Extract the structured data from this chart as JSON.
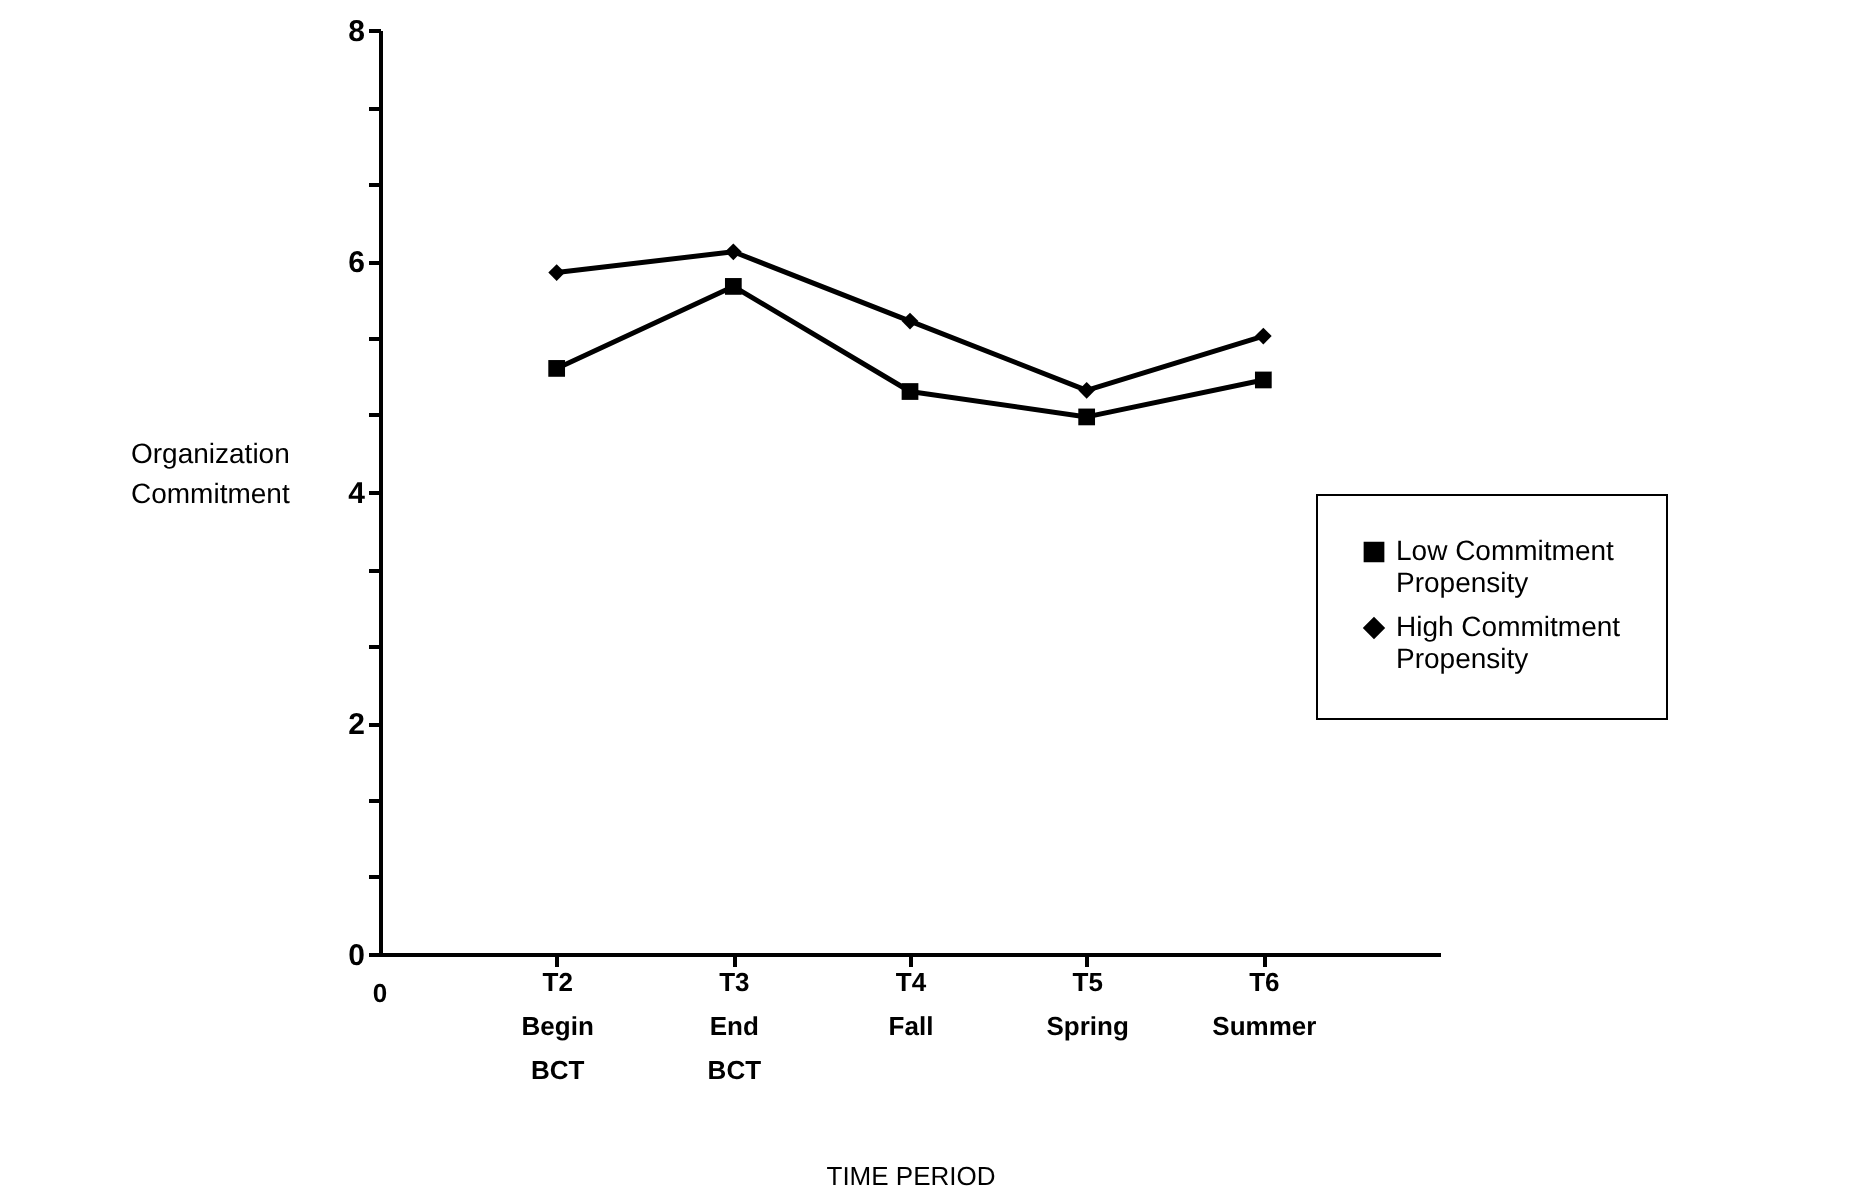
{
  "chart_data": {
    "type": "line",
    "xlabel": "TIME PERIOD",
    "ylabel": "Organization Commitment",
    "annotations": [
      "0"
    ],
    "categories": [
      "T2 Begin BCT",
      "T3 End BCT",
      "T4 Fall",
      "T5 Spring",
      "T6 Summer"
    ],
    "ylim": [
      0,
      8
    ],
    "yticks": [
      0,
      {
        "value": 0.67,
        "label": null
      },
      {
        "value": 1.33,
        "label": null
      },
      2,
      {
        "value": 2.67,
        "label": null
      },
      {
        "value": 3.33,
        "label": null
      },
      4,
      {
        "value": 4.67,
        "label": null
      },
      {
        "value": 5.33,
        "label": null
      },
      6,
      {
        "value": 6.67,
        "label": null
      },
      {
        "value": 7.33,
        "label": null
      },
      8
    ],
    "series": [
      {
        "name": "Low Commitment Propensity",
        "color": "#000000",
        "marker": "square",
        "values": [
          5.07,
          5.78,
          4.87,
          4.65,
          4.97
        ]
      },
      {
        "name": "High Commitment Propensity",
        "color": "#000000",
        "marker": "diamond",
        "values": [
          5.9,
          6.08,
          5.48,
          4.88,
          5.35
        ]
      }
    ],
    "grid": false,
    "legend": "right",
    "line_style": "solid"
  }
}
